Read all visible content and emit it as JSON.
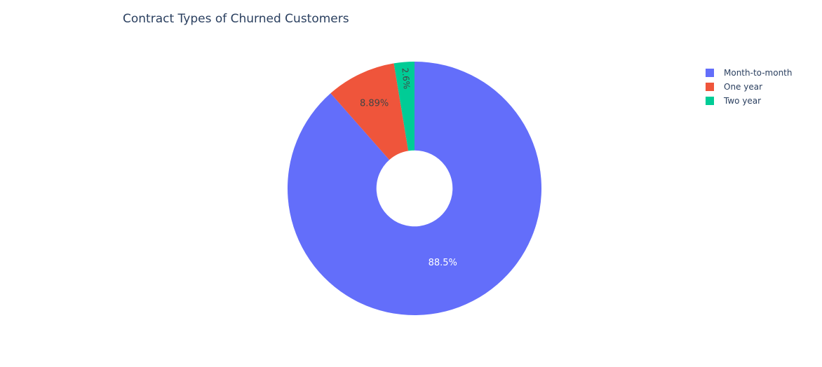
{
  "chart_data": {
    "type": "pie",
    "title": "Contract Types of Churned Customers",
    "hole": 0.3,
    "categories": [
      "Month-to-month",
      "One year",
      "Two year"
    ],
    "values": [
      88.5,
      8.89,
      2.6
    ],
    "labels": [
      "88.5%",
      "8.89%",
      "2.6%"
    ],
    "colors": [
      "#636efa",
      "#ef553b",
      "#00cc96"
    ],
    "label_colors": [
      "#ffffff",
      "#444444",
      "#444444"
    ],
    "legend_position": "top-right",
    "direction": "clockwise",
    "rotation_start": "top"
  }
}
